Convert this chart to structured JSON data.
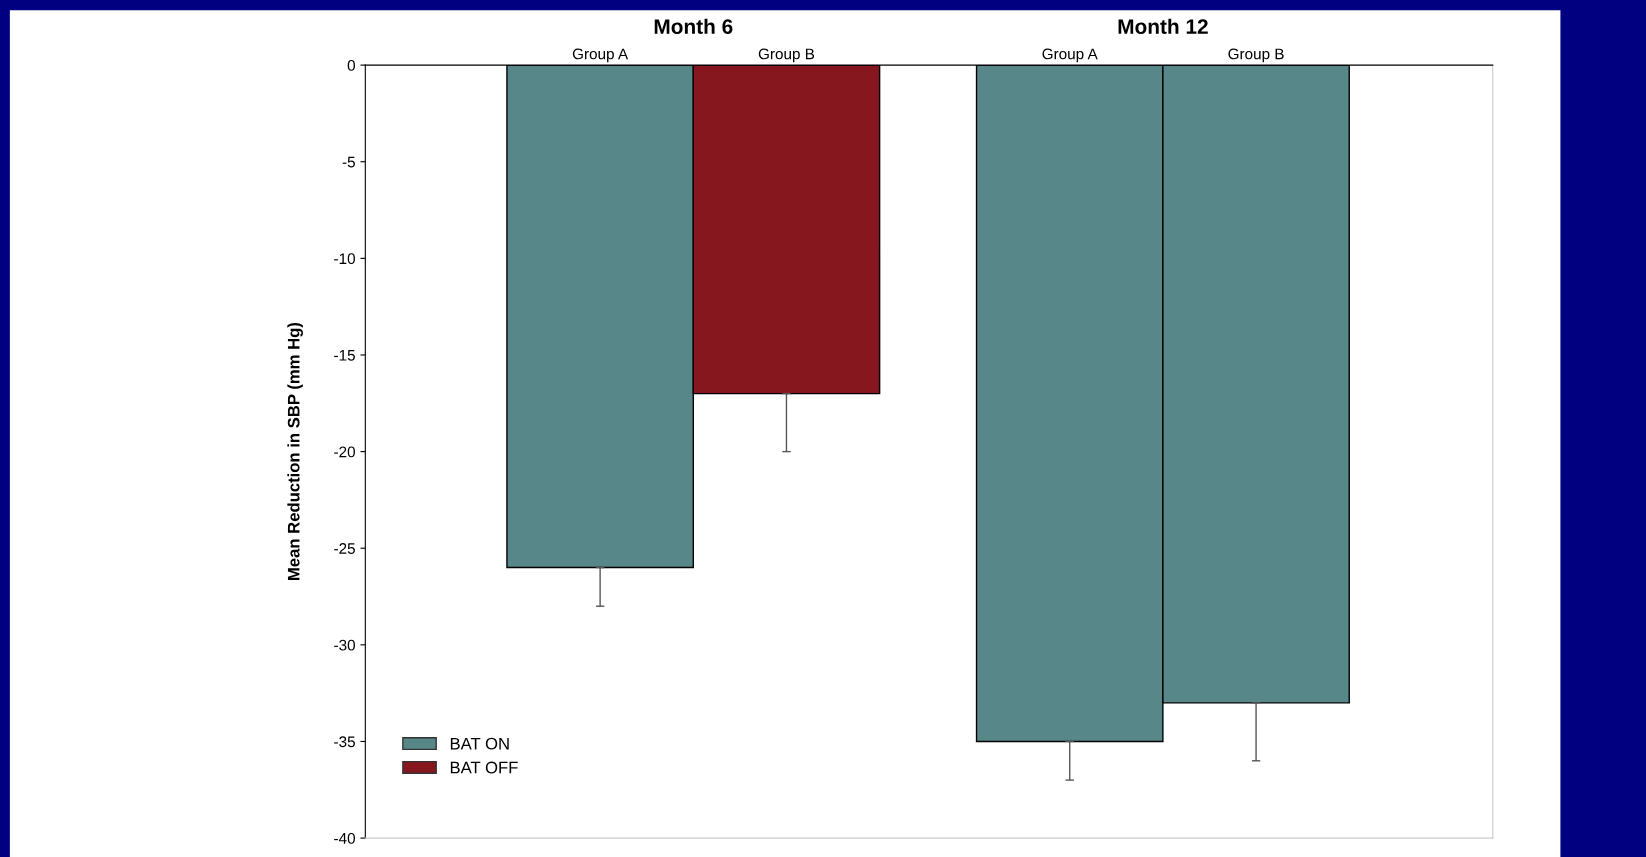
{
  "chart_data": {
    "type": "bar",
    "categories": [
      "Group A",
      "Group B",
      "Group A",
      "Group B"
    ],
    "ylabel": "Mean Reduction in SBP (mm Hg)",
    "annotations": [
      "Month 6",
      "Month 12"
    ],
    "series": [
      {
        "name": "BAT ON",
        "color": "#588789",
        "values": [
          -26,
          null,
          -35,
          -33
        ],
        "errors": [
          [
            -28,
            -26
          ],
          null,
          [
            -37,
            -35
          ],
          [
            -36,
            -33
          ]
        ]
      },
      {
        "name": "BAT OFF",
        "color": "#86171f",
        "values": [
          null,
          -17,
          null,
          null
        ],
        "errors": [
          null,
          [
            -20,
            -17
          ],
          null,
          null
        ]
      }
    ],
    "ylim": [
      -40,
      0
    ],
    "yticks": [
      0,
      -5,
      -10,
      -15,
      -20,
      -25,
      -30,
      -35,
      -40
    ],
    "grid": false,
    "legend": "bottom left"
  }
}
